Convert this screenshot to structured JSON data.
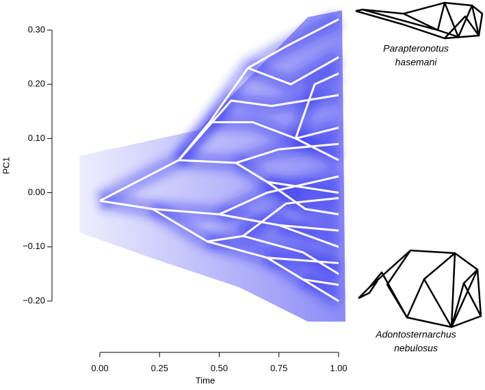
{
  "chart_data": {
    "type": "phenogram",
    "x_label": "Time",
    "y_label": "PC1",
    "xlim": [
      0,
      1
    ],
    "ylim": [
      -0.2,
      0.3
    ],
    "xticks": [
      {
        "value": 0,
        "label": "0.00"
      },
      {
        "value": 0.25,
        "label": "0.25"
      },
      {
        "value": 0.5,
        "label": "0.50"
      },
      {
        "value": 0.75,
        "label": "0.75"
      },
      {
        "value": 1,
        "label": "1.00"
      }
    ],
    "yticks": [
      {
        "value": -0.2,
        "label": "−0.20"
      },
      {
        "value": -0.1,
        "label": "−0.10"
      },
      {
        "value": 0,
        "label": "0.00"
      },
      {
        "value": 0.1,
        "label": "0.10"
      },
      {
        "value": 0.2,
        "label": "0.20"
      },
      {
        "value": 0.3,
        "label": "0.30"
      }
    ],
    "color": "#ffffff",
    "density_color": "#2a2af0",
    "branches": [
      {
        "x": [
          0,
          0.33,
          0.46,
          0.62,
          0.78,
          1
        ],
        "y": [
          -0.015,
          0.06,
          0.13,
          0.23,
          0.27,
          0.32
        ]
      },
      {
        "x": [
          0.62,
          0.8,
          1
        ],
        "y": [
          0.23,
          0.2,
          0.25
        ]
      },
      {
        "x": [
          0.46,
          0.64,
          0.82,
          1
        ],
        "y": [
          0.13,
          0.13,
          0.1,
          0.12
        ]
      },
      {
        "x": [
          0.82,
          1
        ],
        "y": [
          0.1,
          0.06
        ]
      },
      {
        "x": [
          0.82,
          0.9,
          1
        ],
        "y": [
          0.1,
          0.2,
          0.22
        ]
      },
      {
        "x": [
          0.33,
          0.57,
          0.7,
          1
        ],
        "y": [
          0.06,
          0.055,
          0.02,
          0.0
        ]
      },
      {
        "x": [
          0.57,
          0.75,
          1
        ],
        "y": [
          0.055,
          0.08,
          0.09
        ]
      },
      {
        "x": [
          0.7,
          0.86,
          1
        ],
        "y": [
          0.02,
          -0.03,
          -0.04
        ]
      },
      {
        "x": [
          0.33,
          0.55,
          0.72,
          1
        ],
        "y": [
          0.06,
          0.17,
          0.16,
          0.18
        ]
      },
      {
        "x": [
          0,
          0.22,
          0.5,
          0.75,
          1
        ],
        "y": [
          -0.015,
          -0.03,
          -0.04,
          -0.06,
          -0.07
        ]
      },
      {
        "x": [
          0.5,
          0.7,
          1
        ],
        "y": [
          -0.04,
          0.0,
          0.03
        ]
      },
      {
        "x": [
          0.75,
          1
        ],
        "y": [
          -0.06,
          -0.1
        ]
      },
      {
        "x": [
          0.22,
          0.45,
          0.7,
          1
        ],
        "y": [
          -0.03,
          -0.09,
          -0.12,
          -0.13
        ]
      },
      {
        "x": [
          0.7,
          0.85,
          1
        ],
        "y": [
          -0.12,
          -0.16,
          -0.17
        ]
      },
      {
        "x": [
          0.85,
          1
        ],
        "y": [
          -0.16,
          -0.2
        ]
      },
      {
        "x": [
          0.45,
          0.6,
          0.85,
          1
        ],
        "y": [
          -0.09,
          -0.08,
          -0.11,
          -0.15
        ]
      },
      {
        "x": [
          0.6,
          0.78,
          1
        ],
        "y": [
          -0.08,
          -0.02,
          -0.01
        ]
      }
    ],
    "annotations": [
      {
        "lines": [
          "Parapteronotus",
          "hasemani"
        ]
      },
      {
        "lines": [
          "Adontosternarchus",
          "nebulosus"
        ]
      }
    ]
  }
}
